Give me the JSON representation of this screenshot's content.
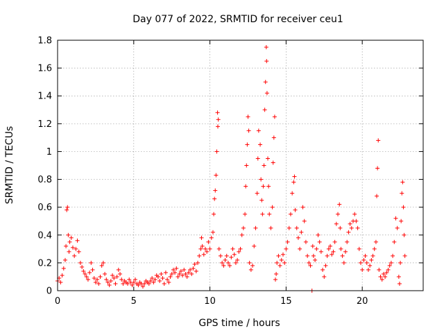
{
  "chart_data": {
    "type": "scatter",
    "title": "Day 077 of 2022, SRMTID for receiver ceu1",
    "xlabel": "GPS time / hours",
    "ylabel": "SRMTID / TECUs",
    "xlim": [
      0,
      24
    ],
    "ylim": [
      0,
      1.8
    ],
    "xticks": [
      0,
      5,
      10,
      15,
      20
    ],
    "xtick_labels": [
      "0",
      "5",
      "10",
      "15",
      "20"
    ],
    "yticks": [
      0,
      0.2,
      0.4,
      0.6,
      0.8,
      1,
      1.2,
      1.4,
      1.6,
      1.8
    ],
    "ytick_labels": [
      "0",
      "0.2",
      "0.4",
      "0.6",
      "0.8",
      "1",
      "1.2",
      "1.4",
      "1.6",
      "1.8"
    ],
    "grid": true,
    "marker": "plus",
    "color": "#ff0000",
    "series": [
      {
        "name": "SRMTID ceu1",
        "points": [
          [
            0.0,
            0.07
          ],
          [
            0.1,
            0.09
          ],
          [
            0.2,
            0.06
          ],
          [
            0.3,
            0.11
          ],
          [
            0.4,
            0.16
          ],
          [
            0.5,
            0.22
          ],
          [
            0.55,
            0.32
          ],
          [
            0.6,
            0.58
          ],
          [
            0.65,
            0.6
          ],
          [
            0.7,
            0.4
          ],
          [
            0.75,
            0.28
          ],
          [
            0.8,
            0.35
          ],
          [
            0.9,
            0.38
          ],
          [
            1.0,
            0.31
          ],
          [
            1.1,
            0.25
          ],
          [
            1.2,
            0.3
          ],
          [
            1.3,
            0.36
          ],
          [
            1.4,
            0.28
          ],
          [
            1.5,
            0.2
          ],
          [
            1.6,
            0.17
          ],
          [
            1.7,
            0.14
          ],
          [
            1.8,
            0.12
          ],
          [
            1.9,
            0.1
          ],
          [
            2.0,
            0.08
          ],
          [
            2.1,
            0.13
          ],
          [
            2.2,
            0.2
          ],
          [
            2.3,
            0.15
          ],
          [
            2.4,
            0.09
          ],
          [
            2.5,
            0.06
          ],
          [
            2.6,
            0.08
          ],
          [
            2.7,
            0.05
          ],
          [
            2.8,
            0.1
          ],
          [
            2.9,
            0.18
          ],
          [
            3.0,
            0.2
          ],
          [
            3.1,
            0.12
          ],
          [
            3.2,
            0.08
          ],
          [
            3.3,
            0.06
          ],
          [
            3.4,
            0.04
          ],
          [
            3.5,
            0.07
          ],
          [
            3.6,
            0.11
          ],
          [
            3.7,
            0.09
          ],
          [
            3.8,
            0.05
          ],
          [
            3.9,
            0.1
          ],
          [
            4.0,
            0.15
          ],
          [
            4.1,
            0.12
          ],
          [
            4.2,
            0.08
          ],
          [
            4.3,
            0.05
          ],
          [
            4.4,
            0.07
          ],
          [
            4.5,
            0.06
          ],
          [
            4.6,
            0.05
          ],
          [
            4.7,
            0.08
          ],
          [
            4.8,
            0.06
          ],
          [
            4.9,
            0.04
          ],
          [
            5.0,
            0.06
          ],
          [
            5.1,
            0.08
          ],
          [
            5.2,
            0.05
          ],
          [
            5.3,
            0.04
          ],
          [
            5.4,
            0.06
          ],
          [
            5.5,
            0.05
          ],
          [
            5.6,
            0.03
          ],
          [
            5.7,
            0.05
          ],
          [
            5.8,
            0.07
          ],
          [
            5.9,
            0.06
          ],
          [
            6.0,
            0.05
          ],
          [
            6.1,
            0.07
          ],
          [
            6.2,
            0.09
          ],
          [
            6.3,
            0.06
          ],
          [
            6.4,
            0.08
          ],
          [
            6.5,
            0.11
          ],
          [
            6.6,
            0.1
          ],
          [
            6.7,
            0.07
          ],
          [
            6.8,
            0.12
          ],
          [
            6.9,
            0.09
          ],
          [
            7.0,
            0.05
          ],
          [
            7.1,
            0.13
          ],
          [
            7.2,
            0.08
          ],
          [
            7.3,
            0.06
          ],
          [
            7.4,
            0.1
          ],
          [
            7.5,
            0.12
          ],
          [
            7.6,
            0.15
          ],
          [
            7.7,
            0.13
          ],
          [
            7.8,
            0.16
          ],
          [
            7.9,
            0.1
          ],
          [
            8.0,
            0.12
          ],
          [
            8.1,
            0.14
          ],
          [
            8.2,
            0.11
          ],
          [
            8.3,
            0.15
          ],
          [
            8.4,
            0.12
          ],
          [
            8.5,
            0.1
          ],
          [
            8.6,
            0.13
          ],
          [
            8.7,
            0.15
          ],
          [
            8.8,
            0.12
          ],
          [
            8.9,
            0.16
          ],
          [
            9.0,
            0.19
          ],
          [
            9.1,
            0.14
          ],
          [
            9.2,
            0.2
          ],
          [
            9.3,
            0.25
          ],
          [
            9.4,
            0.3
          ],
          [
            9.45,
            0.38
          ],
          [
            9.5,
            0.32
          ],
          [
            9.6,
            0.26
          ],
          [
            9.7,
            0.3
          ],
          [
            9.8,
            0.28
          ],
          [
            9.9,
            0.35
          ],
          [
            10.0,
            0.3
          ],
          [
            10.1,
            0.38
          ],
          [
            10.2,
            0.42
          ],
          [
            10.25,
            0.55
          ],
          [
            10.3,
            0.66
          ],
          [
            10.35,
            0.72
          ],
          [
            10.4,
            0.83
          ],
          [
            10.45,
            1.0
          ],
          [
            10.5,
            1.28
          ],
          [
            10.52,
            1.18
          ],
          [
            10.55,
            1.23
          ],
          [
            10.6,
            0.3
          ],
          [
            10.7,
            0.25
          ],
          [
            10.8,
            0.2
          ],
          [
            10.9,
            0.18
          ],
          [
            11.0,
            0.22
          ],
          [
            11.1,
            0.25
          ],
          [
            11.2,
            0.2
          ],
          [
            11.3,
            0.18
          ],
          [
            11.4,
            0.24
          ],
          [
            11.5,
            0.3
          ],
          [
            11.6,
            0.26
          ],
          [
            11.7,
            0.2
          ],
          [
            11.8,
            0.22
          ],
          [
            11.9,
            0.28
          ],
          [
            12.0,
            0.3
          ],
          [
            12.1,
            0.4
          ],
          [
            12.2,
            0.45
          ],
          [
            12.3,
            0.55
          ],
          [
            12.35,
            0.75
          ],
          [
            12.4,
            0.9
          ],
          [
            12.45,
            1.05
          ],
          [
            12.5,
            1.25
          ],
          [
            12.55,
            1.15
          ],
          [
            12.6,
            0.2
          ],
          [
            12.7,
            0.15
          ],
          [
            12.8,
            0.18
          ],
          [
            12.9,
            0.32
          ],
          [
            13.0,
            0.45
          ],
          [
            13.1,
            0.7
          ],
          [
            13.15,
            0.95
          ],
          [
            13.2,
            1.15
          ],
          [
            13.3,
            1.05
          ],
          [
            13.35,
            0.8
          ],
          [
            13.4,
            0.65
          ],
          [
            13.45,
            0.55
          ],
          [
            13.5,
            0.75
          ],
          [
            13.55,
            0.9
          ],
          [
            13.6,
            1.3
          ],
          [
            13.65,
            1.5
          ],
          [
            13.7,
            1.75
          ],
          [
            13.72,
            1.65
          ],
          [
            13.75,
            1.42
          ],
          [
            13.8,
            0.95
          ],
          [
            13.85,
            0.75
          ],
          [
            13.9,
            0.55
          ],
          [
            14.0,
            0.45
          ],
          [
            14.1,
            0.6
          ],
          [
            14.15,
            0.92
          ],
          [
            14.2,
            1.1
          ],
          [
            14.25,
            1.25
          ],
          [
            14.3,
            0.08
          ],
          [
            14.35,
            0.12
          ],
          [
            14.4,
            0.2
          ],
          [
            14.5,
            0.25
          ],
          [
            14.6,
            0.18
          ],
          [
            14.7,
            0.22
          ],
          [
            14.8,
            0.26
          ],
          [
            14.9,
            0.2
          ],
          [
            15.0,
            0.3
          ],
          [
            15.1,
            0.35
          ],
          [
            15.2,
            0.45
          ],
          [
            15.3,
            0.55
          ],
          [
            15.4,
            0.7
          ],
          [
            15.5,
            0.78
          ],
          [
            15.55,
            0.82
          ],
          [
            15.6,
            0.58
          ],
          [
            15.7,
            0.45
          ],
          [
            15.8,
            0.38
          ],
          [
            15.9,
            0.3
          ],
          [
            16.0,
            0.42
          ],
          [
            16.1,
            0.6
          ],
          [
            16.2,
            0.5
          ],
          [
            16.3,
            0.35
          ],
          [
            16.4,
            0.25
          ],
          [
            16.5,
            0.2
          ],
          [
            16.6,
            0.18
          ],
          [
            16.7,
            0.0
          ],
          [
            16.75,
            0.32
          ],
          [
            16.8,
            0.25
          ],
          [
            16.9,
            0.22
          ],
          [
            17.0,
            0.3
          ],
          [
            17.1,
            0.4
          ],
          [
            17.2,
            0.35
          ],
          [
            17.3,
            0.28
          ],
          [
            17.4,
            0.15
          ],
          [
            17.5,
            0.1
          ],
          [
            17.6,
            0.18
          ],
          [
            17.7,
            0.25
          ],
          [
            17.8,
            0.3
          ],
          [
            17.9,
            0.32
          ],
          [
            18.0,
            0.26
          ],
          [
            18.1,
            0.28
          ],
          [
            18.2,
            0.35
          ],
          [
            18.3,
            0.48
          ],
          [
            18.4,
            0.55
          ],
          [
            18.5,
            0.62
          ],
          [
            18.55,
            0.45
          ],
          [
            18.6,
            0.3
          ],
          [
            18.7,
            0.25
          ],
          [
            18.8,
            0.2
          ],
          [
            18.9,
            0.28
          ],
          [
            19.0,
            0.35
          ],
          [
            19.1,
            0.42
          ],
          [
            19.2,
            0.48
          ],
          [
            19.3,
            0.45
          ],
          [
            19.4,
            0.5
          ],
          [
            19.5,
            0.55
          ],
          [
            19.6,
            0.5
          ],
          [
            19.7,
            0.45
          ],
          [
            19.8,
            0.3
          ],
          [
            19.9,
            0.2
          ],
          [
            20.0,
            0.15
          ],
          [
            20.1,
            0.22
          ],
          [
            20.2,
            0.25
          ],
          [
            20.3,
            0.2
          ],
          [
            20.4,
            0.15
          ],
          [
            20.5,
            0.18
          ],
          [
            20.6,
            0.22
          ],
          [
            20.7,
            0.25
          ],
          [
            20.8,
            0.3
          ],
          [
            20.9,
            0.35
          ],
          [
            20.95,
            0.68
          ],
          [
            21.0,
            0.88
          ],
          [
            21.05,
            1.08
          ],
          [
            21.1,
            0.15
          ],
          [
            21.2,
            0.1
          ],
          [
            21.3,
            0.08
          ],
          [
            21.4,
            0.12
          ],
          [
            21.5,
            0.1
          ],
          [
            21.6,
            0.13
          ],
          [
            21.7,
            0.15
          ],
          [
            21.8,
            0.18
          ],
          [
            21.9,
            0.2
          ],
          [
            22.0,
            0.25
          ],
          [
            22.1,
            0.35
          ],
          [
            22.2,
            0.52
          ],
          [
            22.3,
            0.45
          ],
          [
            22.4,
            0.1
          ],
          [
            22.45,
            0.05
          ],
          [
            22.5,
            0.2
          ],
          [
            22.55,
            0.5
          ],
          [
            22.6,
            0.7
          ],
          [
            22.65,
            0.78
          ],
          [
            22.7,
            0.6
          ],
          [
            22.75,
            0.4
          ],
          [
            22.8,
            0.25
          ]
        ]
      }
    ]
  }
}
